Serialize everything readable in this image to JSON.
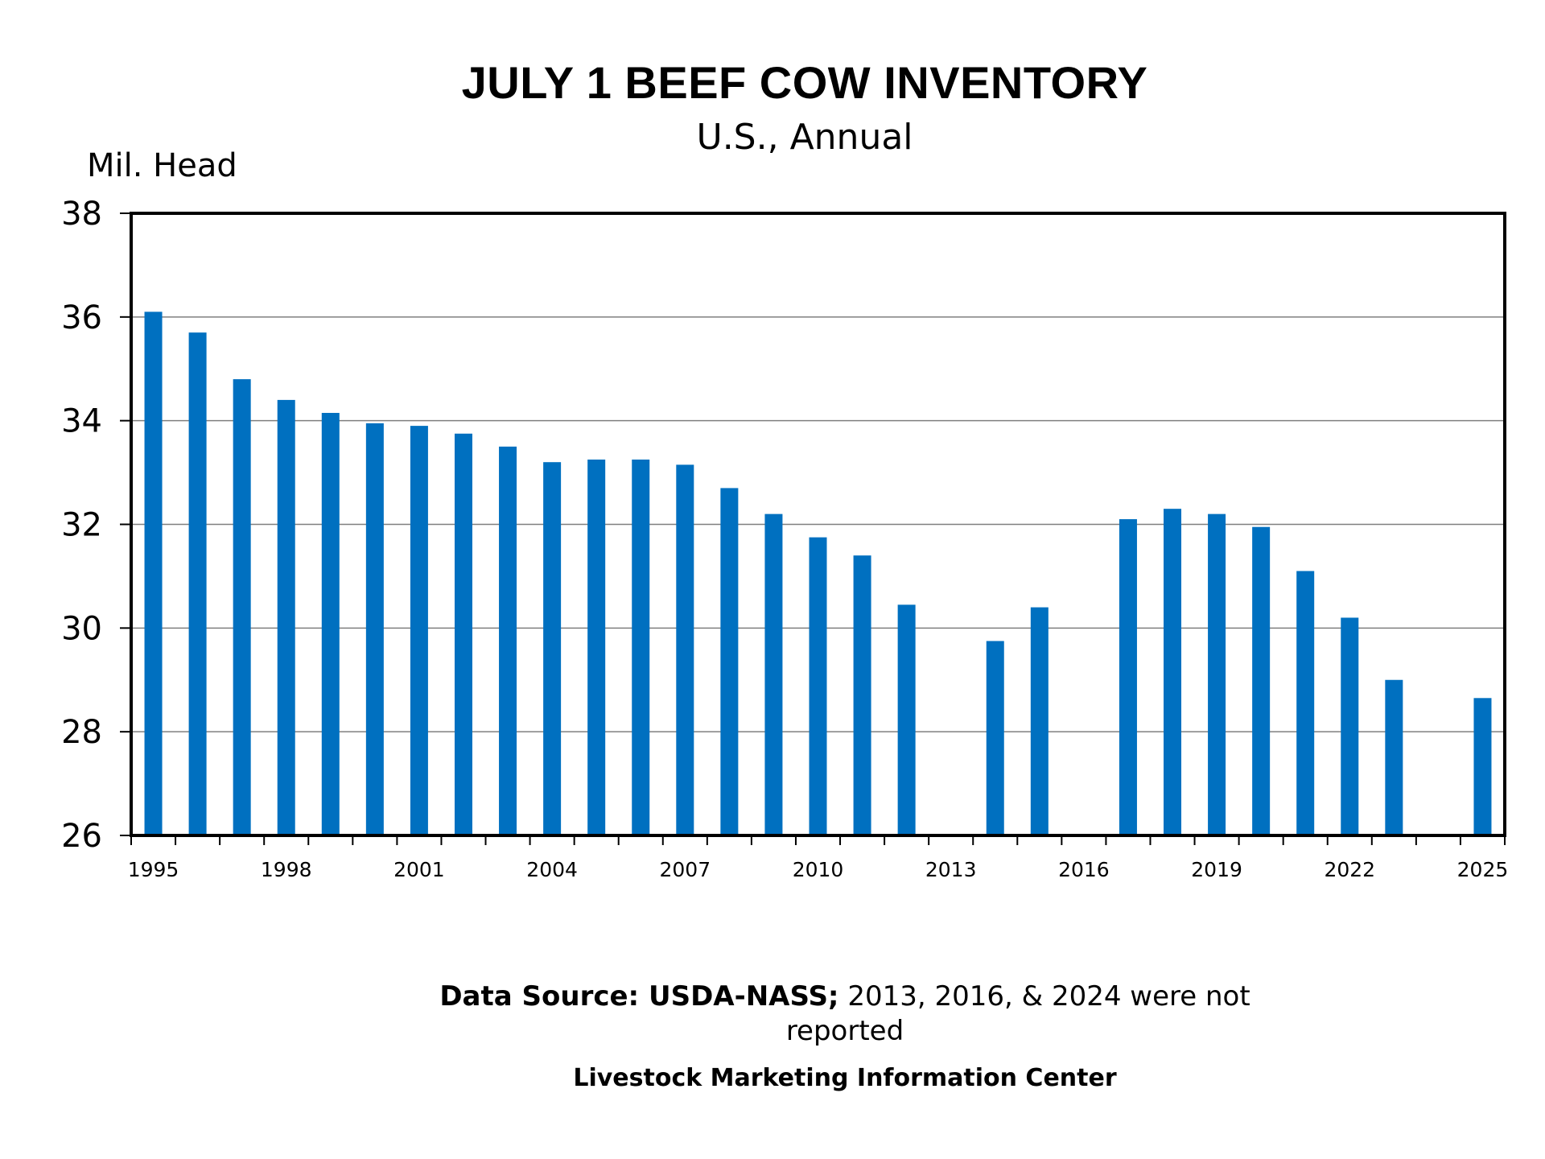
{
  "chart_data": {
    "type": "bar",
    "title": "JULY 1 BEEF COW INVENTORY",
    "subtitle": "U.S., Annual",
    "ylabel": "Mil. Head",
    "xlabel": "",
    "ylim": [
      26,
      38
    ],
    "yticks": [
      26,
      28,
      30,
      32,
      34,
      36,
      38
    ],
    "grid": true,
    "color": "#0070C0",
    "xtick_labels": [
      "1995",
      "1998",
      "2001",
      "2004",
      "2007",
      "2010",
      "2013",
      "2016",
      "2019",
      "2022",
      "2025"
    ],
    "categories": [
      "1995",
      "1996",
      "1997",
      "1998",
      "1999",
      "2000",
      "2001",
      "2002",
      "2003",
      "2004",
      "2005",
      "2006",
      "2007",
      "2008",
      "2009",
      "2010",
      "2011",
      "2012",
      "2013",
      "2014",
      "2015",
      "2016",
      "2017",
      "2018",
      "2019",
      "2020",
      "2021",
      "2022",
      "2023",
      "2024",
      "2025"
    ],
    "values": [
      36.1,
      35.7,
      34.8,
      34.4,
      34.15,
      33.95,
      33.9,
      33.75,
      33.5,
      33.2,
      33.25,
      33.25,
      33.15,
      32.7,
      32.2,
      31.75,
      31.4,
      30.45,
      null,
      29.75,
      30.4,
      null,
      32.1,
      32.3,
      32.2,
      31.95,
      31.1,
      30.2,
      29.0,
      null,
      28.65
    ]
  },
  "footer": {
    "source_bold": "Data Source:  USDA-NASS;",
    "source_rest": " 2013, 2016, & 2024 were not",
    "source_line2": "reported",
    "credit": "Livestock Marketing Information Center"
  }
}
